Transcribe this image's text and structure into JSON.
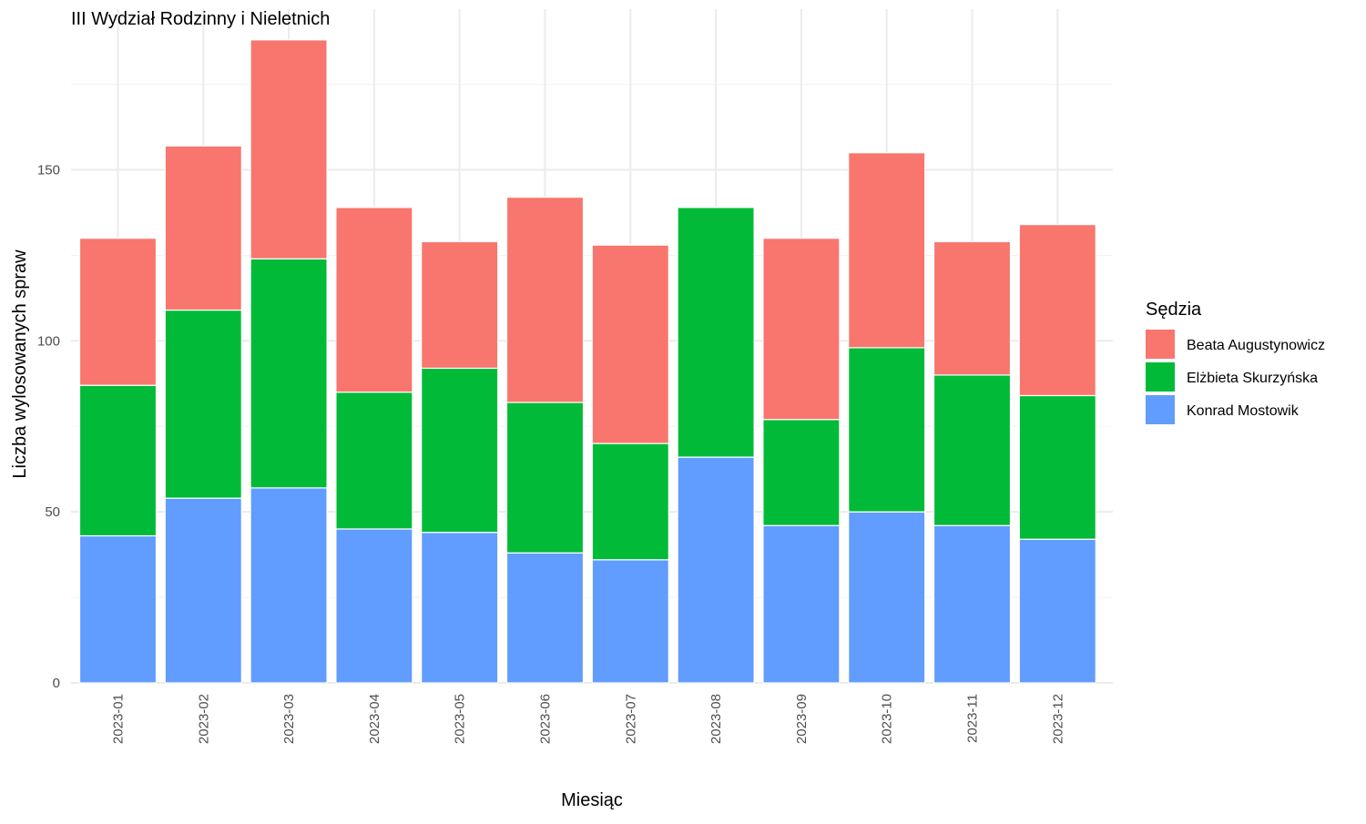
{
  "chart_data": {
    "type": "bar",
    "stacked": true,
    "title": "III Wydział Rodzinny i Nieletnich",
    "xlabel": "Miesiąc",
    "ylabel": "Liczba wylosowanych spraw",
    "categories": [
      "2023-01",
      "2023-02",
      "2023-03",
      "2023-04",
      "2023-05",
      "2023-06",
      "2023-07",
      "2023-08",
      "2023-09",
      "2023-10",
      "2023-11",
      "2023-12"
    ],
    "series": [
      {
        "name": "Konrad Mostowik",
        "color": "#619CFF",
        "values": [
          43,
          54,
          57,
          45,
          44,
          38,
          36,
          66,
          46,
          50,
          46,
          42
        ]
      },
      {
        "name": "Elżbieta Skurzyńska",
        "color": "#00BA38",
        "values": [
          44,
          55,
          67,
          40,
          48,
          44,
          34,
          73,
          31,
          48,
          44,
          42
        ]
      },
      {
        "name": "Beata Augustynowicz",
        "color": "#F8766D",
        "values": [
          43,
          48,
          64,
          54,
          37,
          60,
          58,
          0,
          53,
          57,
          39,
          50
        ]
      }
    ],
    "ylim": [
      0,
      197
    ],
    "yticks": [
      0,
      50,
      100,
      150
    ],
    "legend": {
      "title": "Sędzia",
      "position": "right",
      "order": [
        "Beata Augustynowicz",
        "Elżbieta Skurzyńska",
        "Konrad Mostowik"
      ]
    },
    "grid": true
  }
}
